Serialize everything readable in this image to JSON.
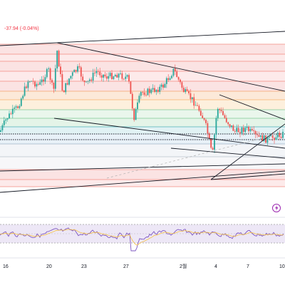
{
  "header": {
    "change_readout": "-37.94 (-0.04%)"
  },
  "x_axis": {
    "labels": [
      "16",
      "20",
      "23",
      "27",
      "2월",
      "4",
      "7",
      "10"
    ]
  },
  "icons": {
    "flash_icon": "lightning-bolt-icon"
  },
  "colors": {
    "candle_up": "#26a69a",
    "candle_down": "#ef5350",
    "trendline": "#131722",
    "band_red": "#f7b6b6",
    "band_green": "#bfe6c9",
    "band_orange": "#f9d39a",
    "rsi_line": "#7e57c2",
    "rsi_band": "#ede7f6",
    "change_text": "#f23645"
  }
}
